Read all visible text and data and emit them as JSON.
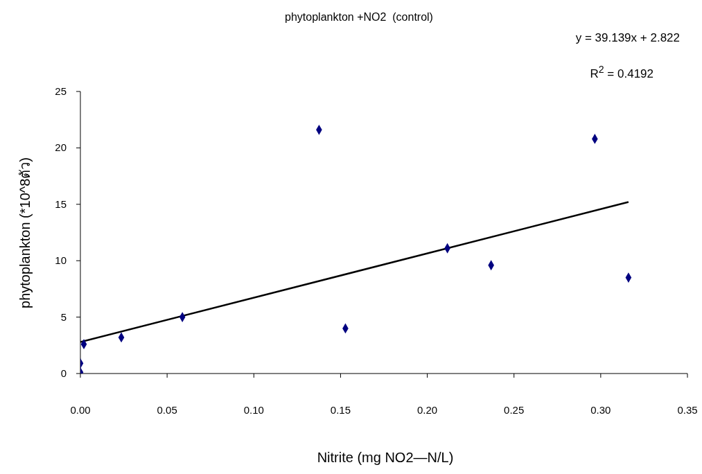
{
  "chart_data": {
    "type": "scatter",
    "title": "phytoplankton +NO2  (control)",
    "xlabel": "Nitrite (mg NO2—N/L)",
    "ylabel": "phytoplankton (*10^8ตัว)",
    "annotations": [
      "y = 39.139x + 2.822",
      "R$^{2}$ = 0.4192"
    ],
    "series": [
      {
        "color": "#000080",
        "marker": "diamond",
        "x": [
          0,
          0,
          0.002,
          0.0236,
          0.0588,
          0.1376,
          0.1528,
          0.2116,
          0.2368,
          0.2966,
          0.316
        ],
        "values": [
          0.9,
          0.1,
          2.6,
          3.2,
          5.0,
          21.6,
          4.0,
          11.1,
          9.6,
          20.8,
          8.5
        ]
      },
      {
        "type": "line",
        "color": "#000000",
        "marker": "none",
        "x": [
          0,
          0.316
        ],
        "values": [
          2.8,
          15.2
        ]
      }
    ],
    "xlim": [
      0,
      0.35
    ],
    "xticks": [
      {
        "value": 0,
        "label": "0.00"
      },
      {
        "value": 0.05,
        "label": "0.05"
      },
      {
        "value": 0.1,
        "label": "0.10"
      },
      {
        "value": 0.15,
        "label": "0.15"
      },
      {
        "value": 0.2,
        "label": "0.20"
      },
      {
        "value": 0.25,
        "label": "0.25"
      },
      {
        "value": 0.3,
        "label": "0.30"
      },
      {
        "value": 0.35,
        "label": "0.35"
      }
    ],
    "ylim": [
      0,
      25
    ],
    "yticks": [
      0,
      5,
      10,
      15,
      20,
      25
    ],
    "grid": false,
    "legend": false
  }
}
